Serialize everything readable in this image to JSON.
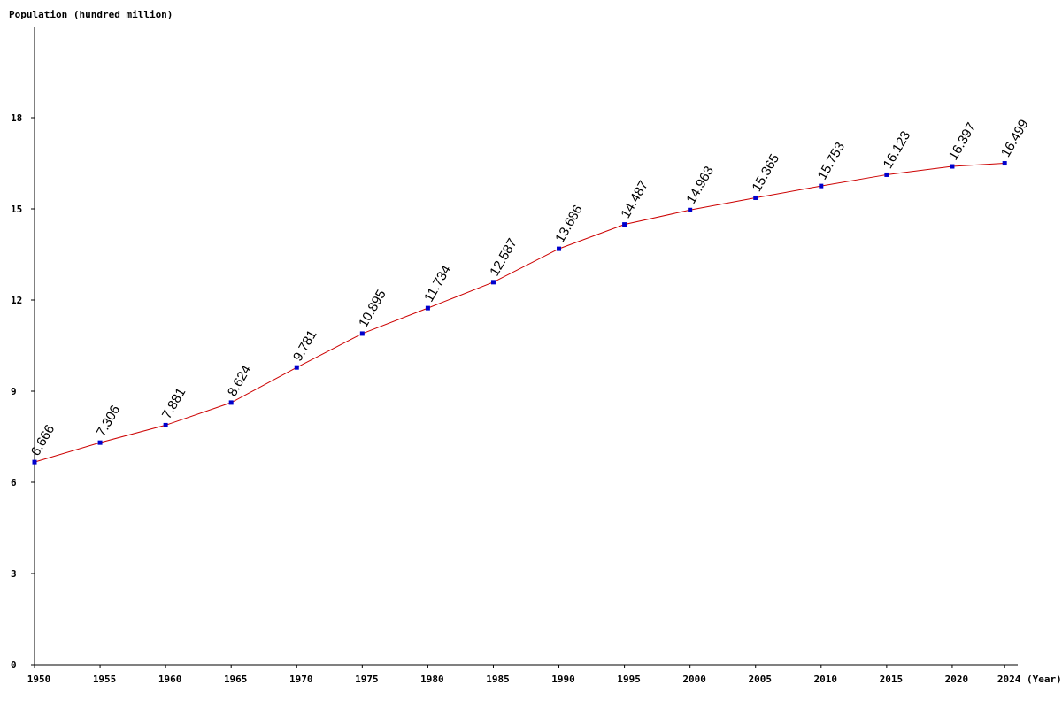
{
  "chart_data": {
    "type": "line",
    "y_label": "Population (hundred million)",
    "x_label": "(Year)",
    "x": [
      1950,
      1955,
      1960,
      1965,
      1970,
      1975,
      1980,
      1985,
      1990,
      1995,
      2000,
      2005,
      2010,
      2015,
      2020,
      2024
    ],
    "series": [
      {
        "color": "#cc0000",
        "marker_color": "#0000cc",
        "values": [
          6.666,
          7.306,
          7.881,
          8.624,
          9.781,
          10.895,
          11.734,
          12.587,
          13.686,
          14.487,
          14.963,
          15.365,
          15.753,
          16.123,
          16.397,
          16.499
        ]
      }
    ],
    "xlim": [
      1950,
      2025
    ],
    "ylim": [
      0,
      21
    ],
    "xticks": [
      1950,
      1955,
      1960,
      1965,
      1970,
      1975,
      1980,
      1985,
      1990,
      1995,
      2000,
      2005,
      2010,
      2015,
      2020,
      2024
    ],
    "yticks": [
      0,
      3,
      6,
      9,
      12,
      15,
      18
    ]
  }
}
